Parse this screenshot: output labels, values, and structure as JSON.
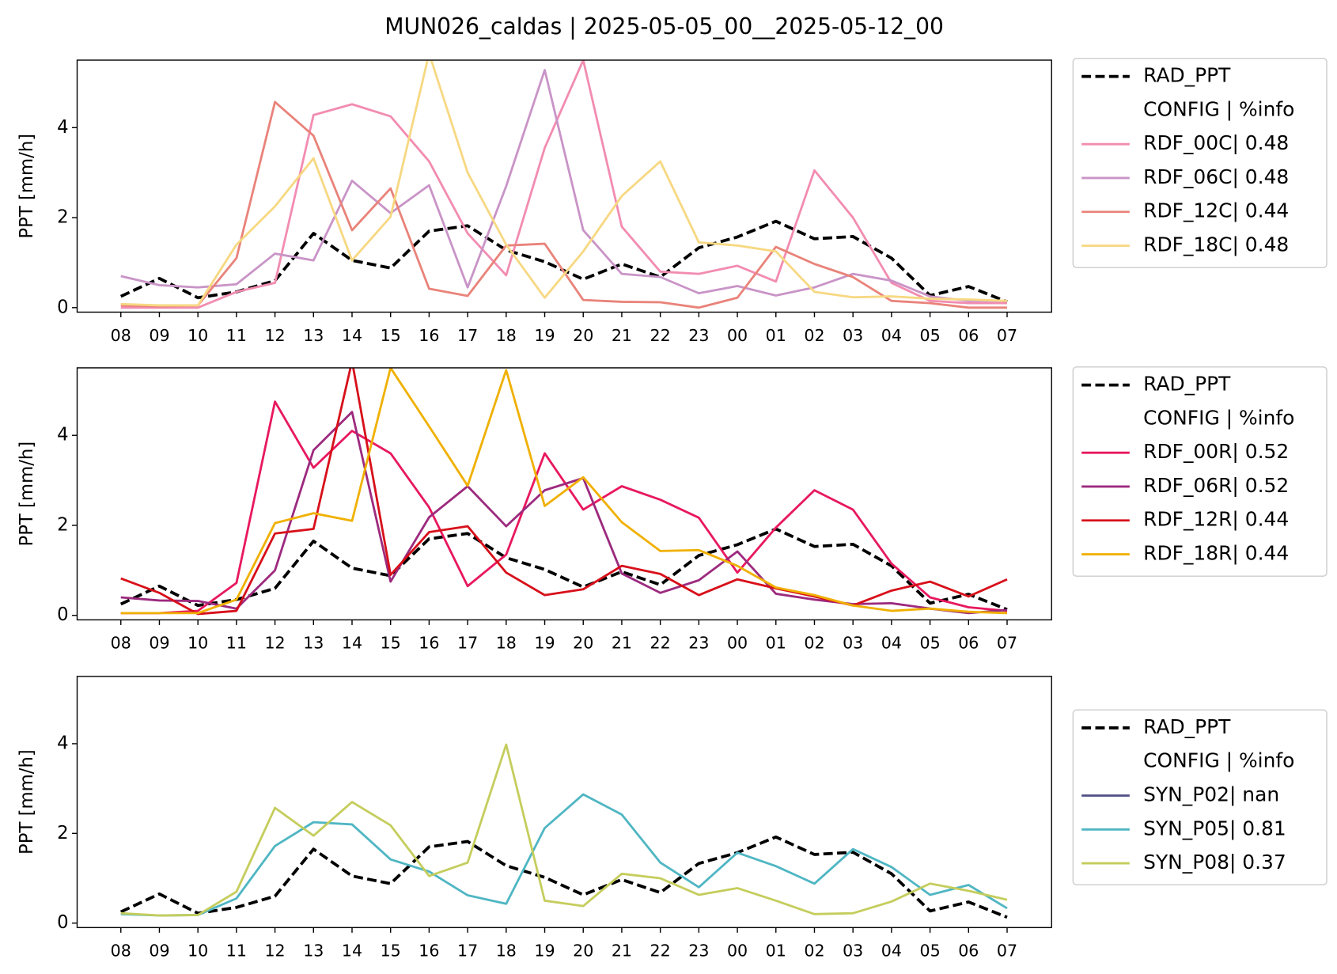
{
  "title": "MUN026_caldas | 2025-05-05_00__2025-05-12_00",
  "chart_data": [
    {
      "type": "line",
      "ylabel": "PPT [mm/h]",
      "legend_header": "CONFIG  | %info",
      "categories": [
        "08",
        "09",
        "10",
        "11",
        "12",
        "13",
        "14",
        "15",
        "16",
        "17",
        "18",
        "19",
        "20",
        "21",
        "22",
        "23",
        "00",
        "01",
        "02",
        "03",
        "04",
        "05",
        "06",
        "07"
      ],
      "ylim": [
        -0.1,
        5.5
      ],
      "yticks": [
        0,
        2,
        4
      ],
      "series": [
        {
          "name": "RAD_PPT",
          "color": "#000000",
          "dashed": true,
          "values": [
            0.25,
            0.65,
            0.22,
            0.35,
            0.6,
            1.65,
            1.05,
            0.88,
            1.7,
            1.82,
            1.28,
            1.02,
            0.63,
            0.97,
            0.68,
            1.33,
            1.57,
            1.92,
            1.53,
            1.58,
            1.1,
            0.27,
            0.47,
            0.13
          ]
        },
        {
          "name": "RDF_00C| 0.48",
          "color": "#f28cb1",
          "values": [
            0.0,
            0.0,
            0.0,
            0.35,
            0.55,
            4.28,
            4.52,
            4.25,
            3.25,
            1.65,
            0.72,
            3.55,
            5.5,
            1.8,
            0.8,
            0.75,
            0.93,
            0.58,
            3.05,
            2.0,
            0.55,
            0.15,
            0.1,
            0.1
          ]
        },
        {
          "name": "RDF_06C| 0.48",
          "color": "#c994c7",
          "values": [
            0.7,
            0.5,
            0.45,
            0.52,
            1.2,
            1.05,
            2.82,
            2.1,
            2.72,
            0.45,
            2.7,
            5.28,
            1.72,
            0.75,
            0.68,
            0.32,
            0.48,
            0.27,
            0.45,
            0.75,
            0.6,
            0.25,
            0.15,
            0.15
          ]
        },
        {
          "name": "RDF_12C| 0.44",
          "color": "#e9837a",
          "values": [
            0.05,
            0.03,
            0.05,
            1.1,
            4.57,
            3.82,
            1.72,
            2.65,
            0.42,
            0.26,
            1.38,
            1.42,
            0.17,
            0.13,
            0.12,
            0.0,
            0.22,
            1.35,
            0.97,
            0.68,
            0.15,
            0.1,
            0.0,
            0.0
          ]
        },
        {
          "name": "RDF_18C| 0.48",
          "color": "#f7d882",
          "values": [
            0.08,
            0.05,
            0.05,
            1.4,
            2.25,
            3.32,
            1.05,
            2.02,
            5.65,
            3.0,
            1.4,
            0.22,
            1.25,
            2.48,
            3.25,
            1.45,
            1.38,
            1.25,
            0.35,
            0.23,
            0.25,
            0.2,
            0.18,
            0.15
          ]
        }
      ]
    },
    {
      "type": "line",
      "ylabel": "PPT [mm/h]",
      "legend_header": "CONFIG  | %info",
      "categories": [
        "08",
        "09",
        "10",
        "11",
        "12",
        "13",
        "14",
        "15",
        "16",
        "17",
        "18",
        "19",
        "20",
        "21",
        "22",
        "23",
        "00",
        "01",
        "02",
        "03",
        "04",
        "05",
        "06",
        "07"
      ],
      "ylim": [
        -0.1,
        5.5
      ],
      "yticks": [
        0,
        2,
        4
      ],
      "series": [
        {
          "name": "RAD_PPT",
          "color": "#000000",
          "dashed": true,
          "values": [
            0.25,
            0.65,
            0.22,
            0.35,
            0.6,
            1.65,
            1.05,
            0.88,
            1.7,
            1.82,
            1.28,
            1.02,
            0.63,
            0.97,
            0.68,
            1.33,
            1.57,
            1.92,
            1.53,
            1.58,
            1.1,
            0.27,
            0.47,
            0.13
          ]
        },
        {
          "name": "RDF_00R| 0.52",
          "color": "#e8185f",
          "values": [
            0.05,
            0.05,
            0.1,
            0.72,
            4.75,
            3.28,
            4.1,
            3.6,
            2.4,
            0.65,
            1.35,
            3.6,
            2.35,
            2.87,
            2.57,
            2.17,
            0.95,
            1.95,
            2.78,
            2.35,
            1.15,
            0.4,
            0.18,
            0.1
          ]
        },
        {
          "name": "RDF_06R| 0.52",
          "color": "#9c2a7e",
          "values": [
            0.4,
            0.33,
            0.32,
            0.15,
            1.0,
            3.67,
            4.52,
            0.75,
            2.18,
            2.87,
            1.98,
            2.78,
            3.05,
            0.93,
            0.5,
            0.78,
            1.42,
            0.48,
            0.35,
            0.25,
            0.27,
            0.15,
            0.05,
            0.12
          ]
        },
        {
          "name": "RDF_12R| 0.44",
          "color": "#d7101a",
          "values": [
            0.82,
            0.5,
            0.03,
            0.1,
            1.82,
            1.92,
            5.65,
            0.9,
            1.85,
            1.98,
            0.95,
            0.45,
            0.58,
            1.1,
            0.92,
            0.45,
            0.8,
            0.6,
            0.42,
            0.22,
            0.55,
            0.75,
            0.42,
            0.8
          ]
        },
        {
          "name": "RDF_18R| 0.44",
          "color": "#f0b000",
          "values": [
            0.05,
            0.05,
            0.05,
            0.35,
            2.05,
            2.27,
            2.1,
            5.5,
            4.2,
            2.88,
            5.45,
            2.43,
            3.07,
            2.07,
            1.43,
            1.45,
            1.1,
            0.62,
            0.45,
            0.22,
            0.1,
            0.15,
            0.08,
            0.05
          ]
        }
      ]
    },
    {
      "type": "line",
      "ylabel": "PPT [mm/h]",
      "legend_header": "CONFIG  | %info",
      "categories": [
        "08",
        "09",
        "10",
        "11",
        "12",
        "13",
        "14",
        "15",
        "16",
        "17",
        "18",
        "19",
        "20",
        "21",
        "22",
        "23",
        "00",
        "01",
        "02",
        "03",
        "04",
        "05",
        "06",
        "07"
      ],
      "ylim": [
        -0.1,
        5.5
      ],
      "yticks": [
        0,
        2,
        4
      ],
      "series": [
        {
          "name": "RAD_PPT",
          "color": "#000000",
          "dashed": true,
          "values": [
            0.25,
            0.65,
            0.22,
            0.35,
            0.6,
            1.65,
            1.05,
            0.88,
            1.7,
            1.82,
            1.28,
            1.02,
            0.63,
            0.97,
            0.68,
            1.33,
            1.57,
            1.92,
            1.53,
            1.58,
            1.1,
            0.27,
            0.47,
            0.13
          ]
        },
        {
          "name": "SYN_P02| nan",
          "color": "#4e4e84",
          "values": [
            null,
            null,
            null,
            null,
            null,
            null,
            null,
            null,
            null,
            null,
            null,
            null,
            null,
            null,
            null,
            null,
            null,
            null,
            null,
            null,
            null,
            null,
            null,
            null
          ]
        },
        {
          "name": "SYN_P05| 0.81",
          "color": "#4fb6c3",
          "values": [
            0.2,
            0.17,
            0.18,
            0.55,
            1.72,
            2.25,
            2.2,
            1.42,
            1.15,
            0.62,
            0.43,
            2.12,
            2.87,
            2.42,
            1.35,
            0.8,
            1.57,
            1.27,
            0.88,
            1.65,
            1.25,
            0.63,
            0.85,
            0.33
          ]
        },
        {
          "name": "SYN_P08| 0.37",
          "color": "#c5cd5c",
          "values": [
            0.22,
            0.17,
            0.18,
            0.7,
            2.57,
            1.95,
            2.7,
            2.18,
            1.05,
            1.35,
            3.98,
            0.5,
            0.38,
            1.1,
            1.0,
            0.63,
            0.78,
            0.5,
            0.2,
            0.22,
            0.48,
            0.88,
            0.72,
            0.52
          ]
        }
      ]
    }
  ]
}
